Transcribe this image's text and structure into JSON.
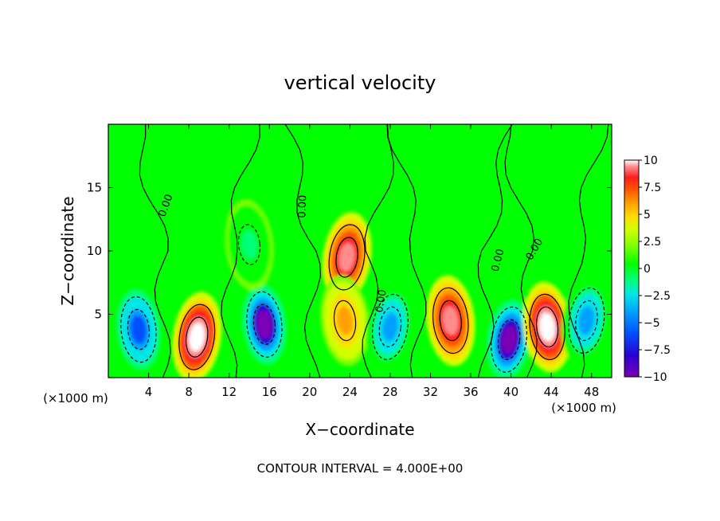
{
  "chart_data": {
    "type": "heatmap",
    "title": "vertical velocity",
    "xlabel": "X−coordinate",
    "ylabel": "Z−coordinate",
    "x_unit": "(×1000 m)",
    "x_unit_right": "(×1000 m)",
    "footer": "CONTOUR INTERVAL = 4.000E+00",
    "xlim": [
      0,
      50
    ],
    "ylim": [
      0,
      20
    ],
    "x_ticks": [
      4,
      8,
      12,
      16,
      20,
      24,
      28,
      32,
      36,
      40,
      44,
      48
    ],
    "x_tick_labels": [
      "4",
      "8",
      "12",
      "16",
      "20",
      "24",
      "28",
      "32",
      "36",
      "40",
      "44",
      "48"
    ],
    "y_ticks": [
      5,
      10,
      15
    ],
    "y_tick_labels": [
      "5",
      "10",
      "15"
    ],
    "colorbar": {
      "min": -10,
      "max": 10,
      "ticks": [
        10,
        7.5,
        5,
        2.5,
        0,
        -2.5,
        -5,
        -7.5,
        -10
      ],
      "tick_labels": [
        "10",
        "7.5",
        "5",
        "2.5",
        "0",
        "−2.5",
        "−5",
        "−7.5",
        "−10"
      ],
      "colors": [
        "#7b00b4",
        "#2800d2",
        "#0050ff",
        "#00a0ff",
        "#00e6e6",
        "#00ff78",
        "#00ff00",
        "#78ff00",
        "#d2ff00",
        "#ffdc00",
        "#ffa000",
        "#ff5a00",
        "#ff1e1e",
        "#ff8c8c",
        "#ffffff"
      ]
    },
    "contour_labels": [
      "0.00",
      "0.00",
      "0.00",
      "0.00",
      "0.00"
    ],
    "cells": [
      {
        "x": 3.0,
        "z": 3.8,
        "w": -7.5
      },
      {
        "x": 8.8,
        "z": 3.2,
        "w": 10.0
      },
      {
        "x": 15.5,
        "z": 4.2,
        "w": -9.5
      },
      {
        "x": 23.7,
        "z": 9.5,
        "w": 9.0
      },
      {
        "x": 23.5,
        "z": 4.5,
        "w": 4.0
      },
      {
        "x": 28.0,
        "z": 4.0,
        "w": -5.5
      },
      {
        "x": 34.0,
        "z": 4.5,
        "w": 8.5
      },
      {
        "x": 39.8,
        "z": 3.0,
        "w": -9.5
      },
      {
        "x": 43.6,
        "z": 4.0,
        "w": 10.0
      },
      {
        "x": 47.5,
        "z": 4.5,
        "w": -6.0
      },
      {
        "x": 14.0,
        "z": 10.5,
        "w": -2.5
      }
    ]
  }
}
